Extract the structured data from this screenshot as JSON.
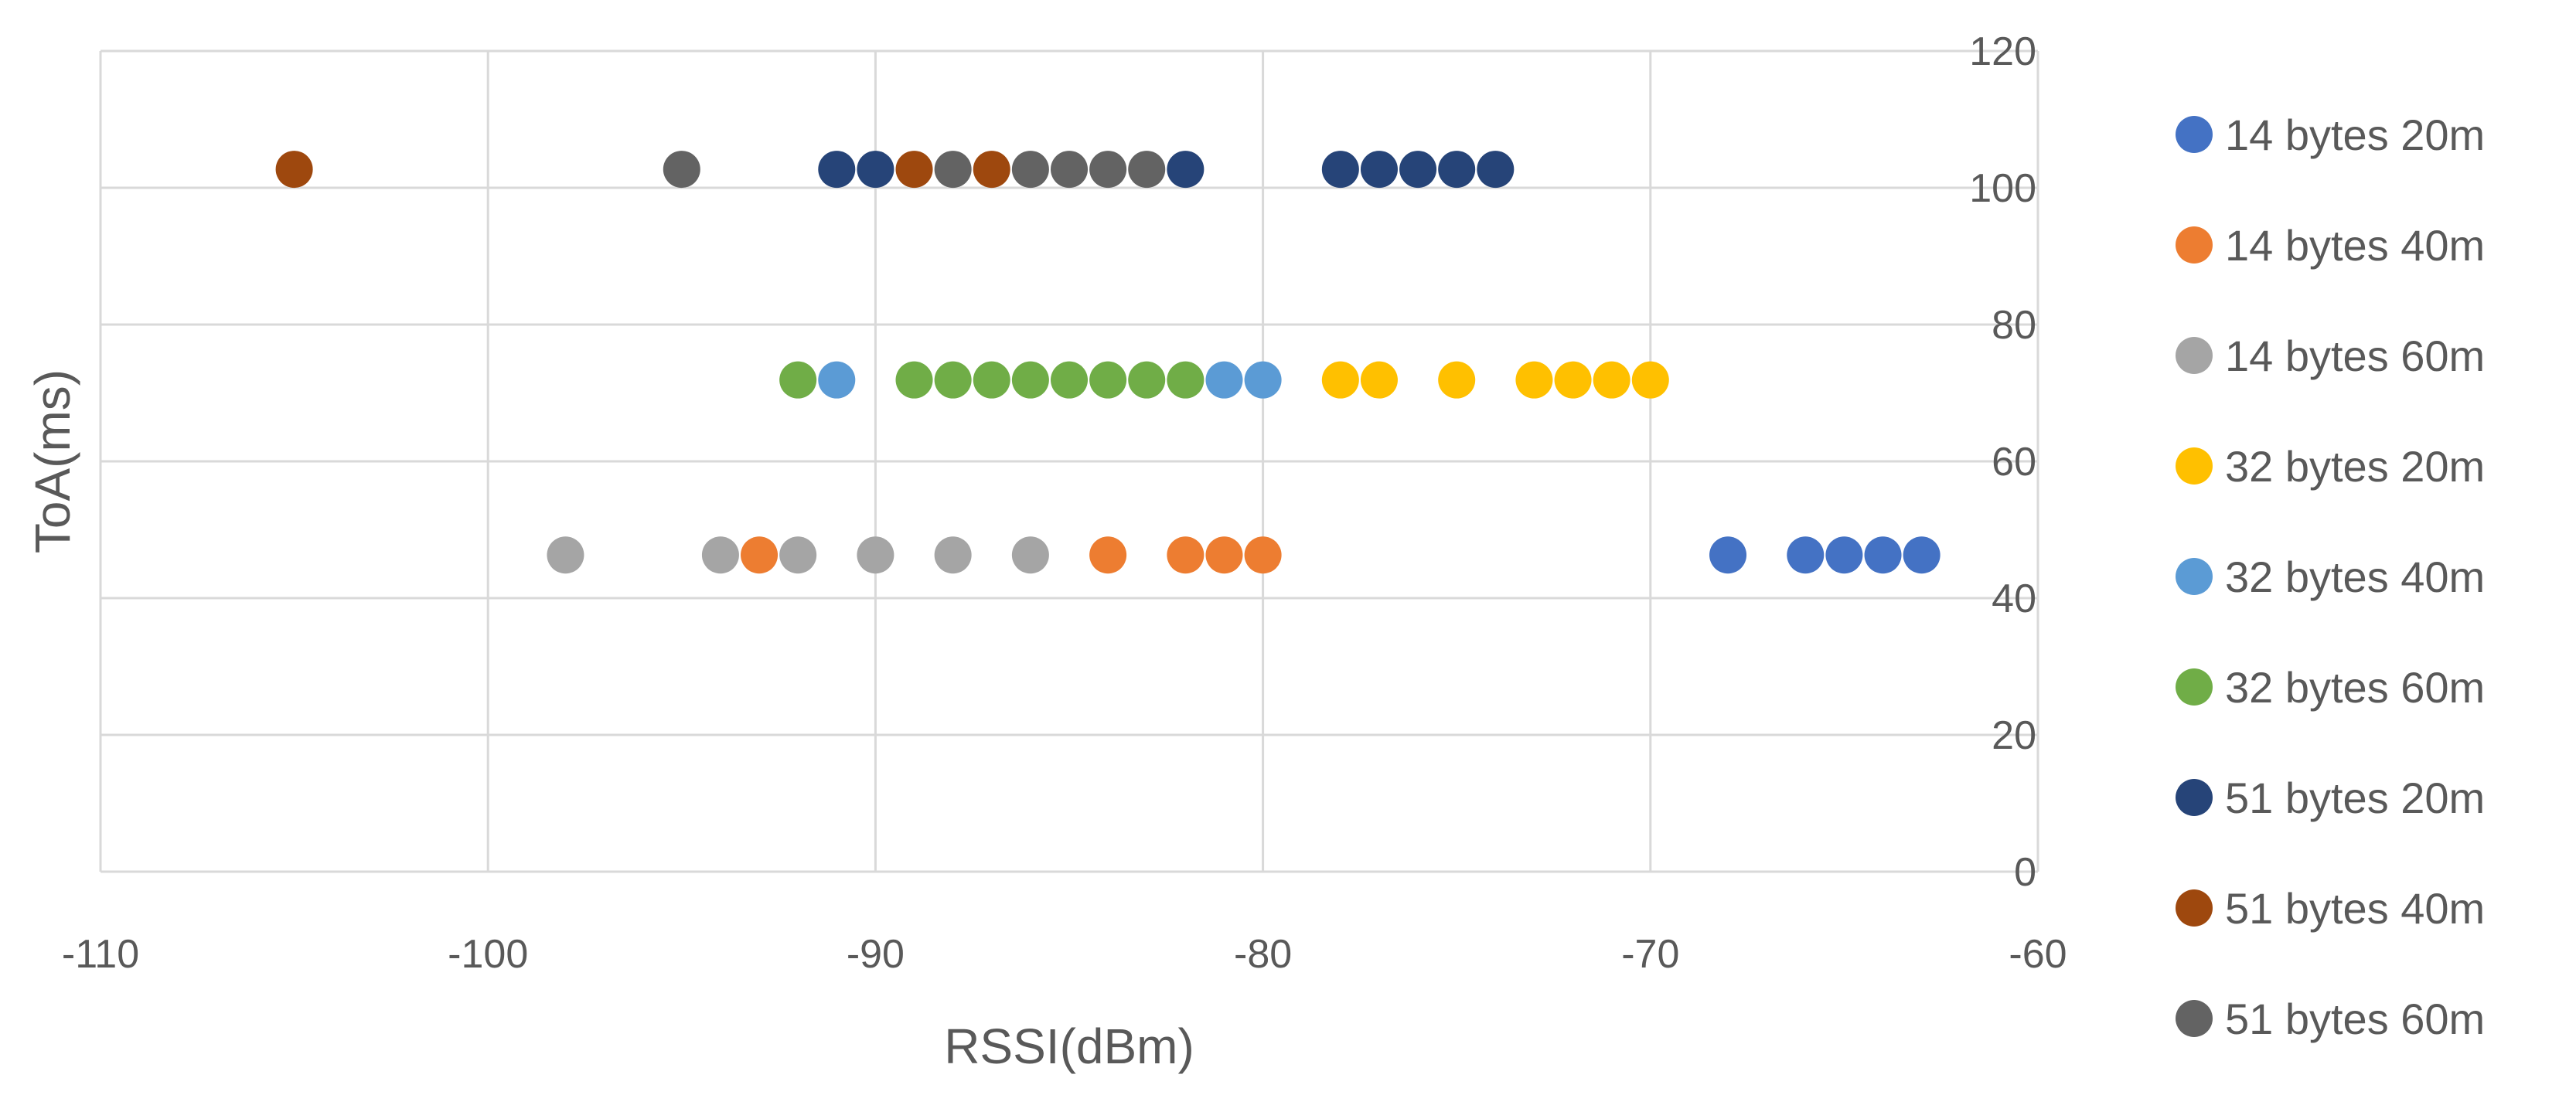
{
  "chart_data": {
    "type": "scatter",
    "title": "",
    "xlabel": "RSSI(dBm)",
    "ylabel": "ToA(ms)",
    "xlim": [
      -110,
      -60
    ],
    "ylim": [
      0,
      120
    ],
    "x_ticks": [
      -110,
      -100,
      -90,
      -80,
      -70,
      -60
    ],
    "y_ticks": [
      0,
      20,
      40,
      60,
      80,
      100,
      120
    ],
    "y_axis_position": "right",
    "grid": true,
    "legend_position": "right",
    "series": [
      {
        "name": "14 bytes 20m",
        "color": "#4472C4",
        "x": [
          -68,
          -66,
          -65,
          -64,
          -63
        ],
        "y": [
          46.3,
          46.3,
          46.3,
          46.3,
          46.3
        ]
      },
      {
        "name": "14 bytes 40m",
        "color": "#ED7D31",
        "x": [
          -93,
          -84,
          -82,
          -81,
          -80
        ],
        "y": [
          46.3,
          46.3,
          46.3,
          46.3,
          46.3
        ]
      },
      {
        "name": "14 bytes 60m",
        "color": "#A5A5A5",
        "x": [
          -98,
          -94,
          -92,
          -90,
          -88,
          -86
        ],
        "y": [
          46.3,
          46.3,
          46.3,
          46.3,
          46.3,
          46.3
        ]
      },
      {
        "name": "32 bytes 20m",
        "color": "#FFC000",
        "x": [
          -78,
          -77,
          -75,
          -73,
          -72,
          -71,
          -70
        ],
        "y": [
          71.9,
          71.9,
          71.9,
          71.9,
          71.9,
          71.9,
          71.9
        ]
      },
      {
        "name": "32 bytes 40m",
        "color": "#5B9BD5",
        "x": [
          -91,
          -81,
          -80
        ],
        "y": [
          71.9,
          71.9,
          71.9
        ]
      },
      {
        "name": "32 bytes 60m",
        "color": "#70AD47",
        "x": [
          -92,
          -89,
          -88,
          -87,
          -86,
          -85,
          -84,
          -83,
          -82
        ],
        "y": [
          71.9,
          71.9,
          71.9,
          71.9,
          71.9,
          71.9,
          71.9,
          71.9,
          71.9
        ]
      },
      {
        "name": "51 bytes 20m",
        "color": "#264478",
        "x": [
          -91,
          -90,
          -82,
          -78,
          -77,
          -76,
          -75,
          -74
        ],
        "y": [
          102.7,
          102.7,
          102.7,
          102.7,
          102.7,
          102.7,
          102.7,
          102.7
        ]
      },
      {
        "name": "51 bytes 40m",
        "color": "#9E480E",
        "x": [
          -105,
          -89,
          -87
        ],
        "y": [
          102.7,
          102.7,
          102.7
        ]
      },
      {
        "name": "51 bytes 60m",
        "color": "#636363",
        "x": [
          -95,
          -88,
          -86,
          -85,
          -84,
          -83
        ],
        "y": [
          102.7,
          102.7,
          102.7,
          102.7,
          102.7,
          102.7
        ]
      }
    ]
  }
}
